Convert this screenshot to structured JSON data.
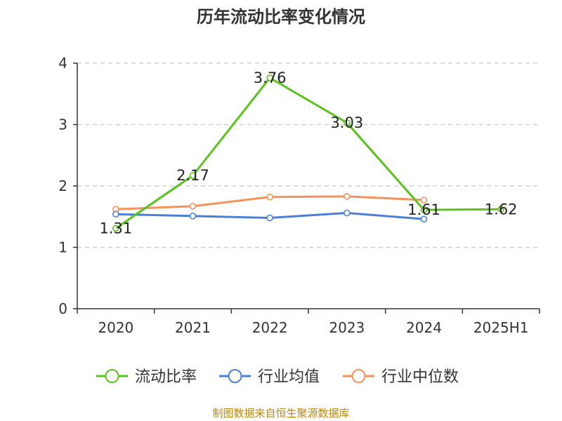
{
  "title": "历年流动比率变化情况",
  "source": "制图数据来自恒生聚源数据库",
  "chart_data": {
    "type": "line",
    "title": "历年流动比率变化情况",
    "categories": [
      "2020",
      "2021",
      "2022",
      "2023",
      "2024",
      "2025H1"
    ],
    "ylim": [
      0,
      4
    ],
    "yticks": [
      0,
      1,
      2,
      3,
      4
    ],
    "grid": true,
    "legend_position": "bottom",
    "series": [
      {
        "name": "流动比率",
        "color": "#5bc21d",
        "values": [
          1.31,
          2.17,
          3.76,
          3.03,
          1.61,
          1.62
        ],
        "labels": [
          "1.31",
          "2.17",
          "3.76",
          "3.03",
          "1.61",
          "1.62"
        ]
      },
      {
        "name": "行业均值",
        "color": "#4a7fd8",
        "values": [
          1.54,
          1.51,
          1.48,
          1.56,
          1.46,
          null
        ]
      },
      {
        "name": "行业中位数",
        "color": "#f5915a",
        "values": [
          1.62,
          1.67,
          1.82,
          1.83,
          1.77,
          null
        ]
      }
    ]
  }
}
